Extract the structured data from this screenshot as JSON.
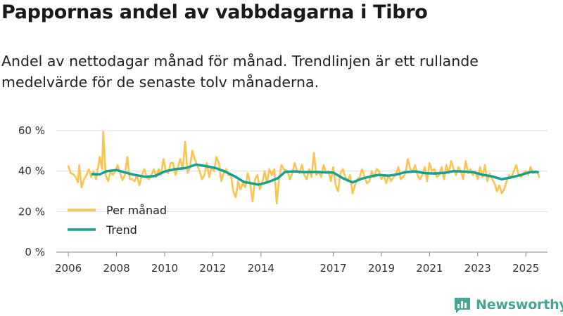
{
  "title": "Pappornas andel av vabbdagarna i Tibro",
  "subtitle": "Andel av nettodagar månad för månad. Trendlinjen är ett rullande medelvärde för de senaste tolv månaderna.",
  "brand": {
    "name": "Newsworthy"
  },
  "colors": {
    "monthly": "#fdc34e",
    "trend": "#12a195",
    "grid": "#dddddd",
    "brand": "#47a593"
  },
  "chart_data": {
    "type": "line",
    "title": "Pappornas andel av vabbdagarna i Tibro",
    "ylim": [
      0,
      60
    ],
    "xlim": [
      2005.5,
      2025.9
    ],
    "y_ticks": [
      {
        "value": 0,
        "label": "0 %"
      },
      {
        "value": 20,
        "label": "20 %"
      },
      {
        "value": 40,
        "label": "40 %"
      },
      {
        "value": 60,
        "label": "60 %"
      }
    ],
    "x_ticks": [
      {
        "value": 2006,
        "label": "2006"
      },
      {
        "value": 2008,
        "label": "2008"
      },
      {
        "value": 2010,
        "label": "2010"
      },
      {
        "value": 2012,
        "label": "2012"
      },
      {
        "value": 2014,
        "label": "2014"
      },
      {
        "value": 2017,
        "label": "2017"
      },
      {
        "value": 2019,
        "label": "2019"
      },
      {
        "value": 2021,
        "label": "2021"
      },
      {
        "value": 2023,
        "label": "2023"
      },
      {
        "value": 2025,
        "label": "2025"
      }
    ],
    "legend": {
      "position": "bottom-left"
    },
    "series": [
      {
        "name": "Per månad",
        "color": "#fdc34e",
        "points": [
          [
            2006.0,
            42.5
          ],
          [
            2006.1,
            39
          ],
          [
            2006.2,
            38.5
          ],
          [
            2006.3,
            37
          ],
          [
            2006.4,
            34.5
          ],
          [
            2006.45,
            43
          ],
          [
            2006.55,
            32
          ],
          [
            2006.65,
            36
          ],
          [
            2006.75,
            38
          ],
          [
            2006.85,
            41
          ],
          [
            2006.95,
            37
          ],
          [
            2007.05,
            40
          ],
          [
            2007.15,
            36
          ],
          [
            2007.25,
            43
          ],
          [
            2007.3,
            47
          ],
          [
            2007.4,
            41
          ],
          [
            2007.45,
            59.5
          ],
          [
            2007.55,
            38
          ],
          [
            2007.65,
            35
          ],
          [
            2007.75,
            40
          ],
          [
            2007.85,
            38
          ],
          [
            2007.95,
            40
          ],
          [
            2008.05,
            43
          ],
          [
            2008.15,
            39
          ],
          [
            2008.25,
            35.5
          ],
          [
            2008.35,
            38
          ],
          [
            2008.45,
            47
          ],
          [
            2008.55,
            36
          ],
          [
            2008.65,
            36
          ],
          [
            2008.75,
            35
          ],
          [
            2008.85,
            38
          ],
          [
            2008.95,
            33
          ],
          [
            2009.05,
            38
          ],
          [
            2009.15,
            41
          ],
          [
            2009.25,
            37
          ],
          [
            2009.35,
            36
          ],
          [
            2009.45,
            38
          ],
          [
            2009.55,
            41
          ],
          [
            2009.65,
            37
          ],
          [
            2009.75,
            41
          ],
          [
            2009.85,
            38
          ],
          [
            2009.95,
            46
          ],
          [
            2010.05,
            40
          ],
          [
            2010.15,
            39
          ],
          [
            2010.25,
            44
          ],
          [
            2010.35,
            44
          ],
          [
            2010.45,
            38
          ],
          [
            2010.55,
            42
          ],
          [
            2010.65,
            46
          ],
          [
            2010.75,
            41
          ],
          [
            2010.85,
            54.5
          ],
          [
            2010.95,
            39
          ],
          [
            2011.05,
            42
          ],
          [
            2011.15,
            50
          ],
          [
            2011.25,
            46
          ],
          [
            2011.35,
            43
          ],
          [
            2011.45,
            40
          ],
          [
            2011.55,
            36
          ],
          [
            2011.65,
            38
          ],
          [
            2011.75,
            44
          ],
          [
            2011.85,
            37
          ],
          [
            2011.95,
            42
          ],
          [
            2012.05,
            40
          ],
          [
            2012.15,
            47
          ],
          [
            2012.25,
            44
          ],
          [
            2012.35,
            35
          ],
          [
            2012.45,
            39
          ],
          [
            2012.55,
            41
          ],
          [
            2012.65,
            38
          ],
          [
            2012.75,
            38
          ],
          [
            2012.85,
            30
          ],
          [
            2012.95,
            27
          ],
          [
            2013.05,
            35
          ],
          [
            2013.15,
            31
          ],
          [
            2013.25,
            34
          ],
          [
            2013.35,
            32
          ],
          [
            2013.45,
            39
          ],
          [
            2013.55,
            34
          ],
          [
            2013.65,
            25
          ],
          [
            2013.75,
            36
          ],
          [
            2013.85,
            38
          ],
          [
            2013.95,
            31
          ],
          [
            2014.05,
            34
          ],
          [
            2014.15,
            40
          ],
          [
            2014.25,
            34
          ],
          [
            2014.35,
            41
          ],
          [
            2014.45,
            38
          ],
          [
            2014.55,
            41
          ],
          [
            2014.65,
            24
          ],
          [
            2014.75,
            36
          ],
          [
            2014.85,
            43
          ],
          [
            2014.95,
            41
          ],
          [
            2015.1,
            40
          ],
          [
            2015.2,
            36
          ],
          [
            2015.3,
            39
          ],
          [
            2015.4,
            44
          ],
          [
            2015.5,
            40
          ],
          [
            2015.6,
            39
          ],
          [
            2015.7,
            43
          ],
          [
            2015.8,
            38
          ],
          [
            2015.9,
            36
          ],
          [
            2016.0,
            41
          ],
          [
            2016.1,
            37
          ],
          [
            2016.2,
            49
          ],
          [
            2016.3,
            38
          ],
          [
            2016.4,
            40
          ],
          [
            2016.5,
            37
          ],
          [
            2016.6,
            43
          ],
          [
            2016.7,
            39
          ],
          [
            2016.8,
            40
          ],
          [
            2016.9,
            35
          ],
          [
            2017.0,
            42
          ],
          [
            2017.1,
            33
          ],
          [
            2017.2,
            30
          ],
          [
            2017.3,
            39
          ],
          [
            2017.4,
            41
          ],
          [
            2017.5,
            37
          ],
          [
            2017.6,
            35
          ],
          [
            2017.7,
            38
          ],
          [
            2017.8,
            29
          ],
          [
            2017.9,
            33
          ],
          [
            2018.0,
            36
          ],
          [
            2018.1,
            37
          ],
          [
            2018.2,
            41
          ],
          [
            2018.3,
            37
          ],
          [
            2018.4,
            34
          ],
          [
            2018.5,
            35
          ],
          [
            2018.6,
            40
          ],
          [
            2018.7,
            37
          ],
          [
            2018.8,
            41
          ],
          [
            2018.9,
            40
          ],
          [
            2019.0,
            36
          ],
          [
            2019.1,
            38
          ],
          [
            2019.2,
            34
          ],
          [
            2019.3,
            38
          ],
          [
            2019.4,
            35
          ],
          [
            2019.5,
            37
          ],
          [
            2019.6,
            38
          ],
          [
            2019.7,
            42
          ],
          [
            2019.8,
            36
          ],
          [
            2019.9,
            37
          ],
          [
            2020.0,
            39
          ],
          [
            2020.1,
            46
          ],
          [
            2020.2,
            41
          ],
          [
            2020.3,
            40
          ],
          [
            2020.4,
            43
          ],
          [
            2020.5,
            38
          ],
          [
            2020.6,
            36
          ],
          [
            2020.7,
            38
          ],
          [
            2020.8,
            42
          ],
          [
            2020.9,
            35
          ],
          [
            2021.0,
            44
          ],
          [
            2021.1,
            40
          ],
          [
            2021.2,
            41
          ],
          [
            2021.3,
            37
          ],
          [
            2021.4,
            38
          ],
          [
            2021.5,
            42
          ],
          [
            2021.6,
            36
          ],
          [
            2021.7,
            43
          ],
          [
            2021.8,
            39
          ],
          [
            2021.9,
            45
          ],
          [
            2022.0,
            41
          ],
          [
            2022.1,
            38
          ],
          [
            2022.2,
            42
          ],
          [
            2022.3,
            40
          ],
          [
            2022.4,
            36
          ],
          [
            2022.5,
            45
          ],
          [
            2022.6,
            39
          ],
          [
            2022.7,
            41
          ],
          [
            2022.8,
            38
          ],
          [
            2022.9,
            40
          ],
          [
            2023.0,
            36
          ],
          [
            2023.1,
            42
          ],
          [
            2023.2,
            37
          ],
          [
            2023.3,
            43
          ],
          [
            2023.4,
            35
          ],
          [
            2023.5,
            39
          ],
          [
            2023.6,
            36
          ],
          [
            2023.7,
            34
          ],
          [
            2023.8,
            30
          ],
          [
            2023.9,
            33
          ],
          [
            2024.0,
            29
          ],
          [
            2024.1,
            31
          ],
          [
            2024.2,
            35
          ],
          [
            2024.3,
            38
          ],
          [
            2024.4,
            37
          ],
          [
            2024.5,
            40
          ],
          [
            2024.6,
            43
          ],
          [
            2024.7,
            38
          ],
          [
            2024.8,
            37
          ],
          [
            2024.9,
            39
          ],
          [
            2025.0,
            40
          ],
          [
            2025.1,
            38
          ],
          [
            2025.2,
            42
          ],
          [
            2025.3,
            39
          ],
          [
            2025.4,
            40
          ],
          [
            2025.5,
            39
          ],
          [
            2025.55,
            37
          ]
        ]
      },
      {
        "name": "Trend",
        "color": "#12a195",
        "points": [
          [
            2007.0,
            38.5
          ],
          [
            2007.3,
            38.4
          ],
          [
            2007.6,
            40
          ],
          [
            2008.0,
            40.5
          ],
          [
            2008.4,
            39.2
          ],
          [
            2008.8,
            38
          ],
          [
            2009.2,
            37.2
          ],
          [
            2009.6,
            37.6
          ],
          [
            2010.0,
            39.8
          ],
          [
            2010.4,
            40.9
          ],
          [
            2010.9,
            41.6
          ],
          [
            2011.3,
            43.2
          ],
          [
            2011.7,
            42.5
          ],
          [
            2012.1,
            41.6
          ],
          [
            2012.5,
            39.8
          ],
          [
            2012.9,
            37.5
          ],
          [
            2013.3,
            34.6
          ],
          [
            2013.6,
            34
          ],
          [
            2013.9,
            33.3
          ],
          [
            2014.3,
            34.6
          ],
          [
            2014.7,
            36.5
          ],
          [
            2015.0,
            39.6
          ],
          [
            2015.4,
            39.9
          ],
          [
            2015.8,
            39.5
          ],
          [
            2016.2,
            39.6
          ],
          [
            2016.6,
            39.4
          ],
          [
            2017.0,
            39.3
          ],
          [
            2017.4,
            36.5
          ],
          [
            2017.8,
            34.4
          ],
          [
            2018.2,
            36.3
          ],
          [
            2018.6,
            37.5
          ],
          [
            2018.9,
            38.1
          ],
          [
            2019.3,
            37.7
          ],
          [
            2019.7,
            38.5
          ],
          [
            2020.0,
            39.5
          ],
          [
            2020.4,
            39.9
          ],
          [
            2020.8,
            39
          ],
          [
            2021.2,
            38.8
          ],
          [
            2021.6,
            39.1
          ],
          [
            2022.0,
            40
          ],
          [
            2022.4,
            39.8
          ],
          [
            2022.8,
            39.5
          ],
          [
            2023.2,
            38.2
          ],
          [
            2023.6,
            37.4
          ],
          [
            2024.0,
            36
          ],
          [
            2024.4,
            36.9
          ],
          [
            2024.8,
            38.1
          ],
          [
            2025.2,
            39.6
          ],
          [
            2025.5,
            39.5
          ]
        ]
      }
    ]
  }
}
